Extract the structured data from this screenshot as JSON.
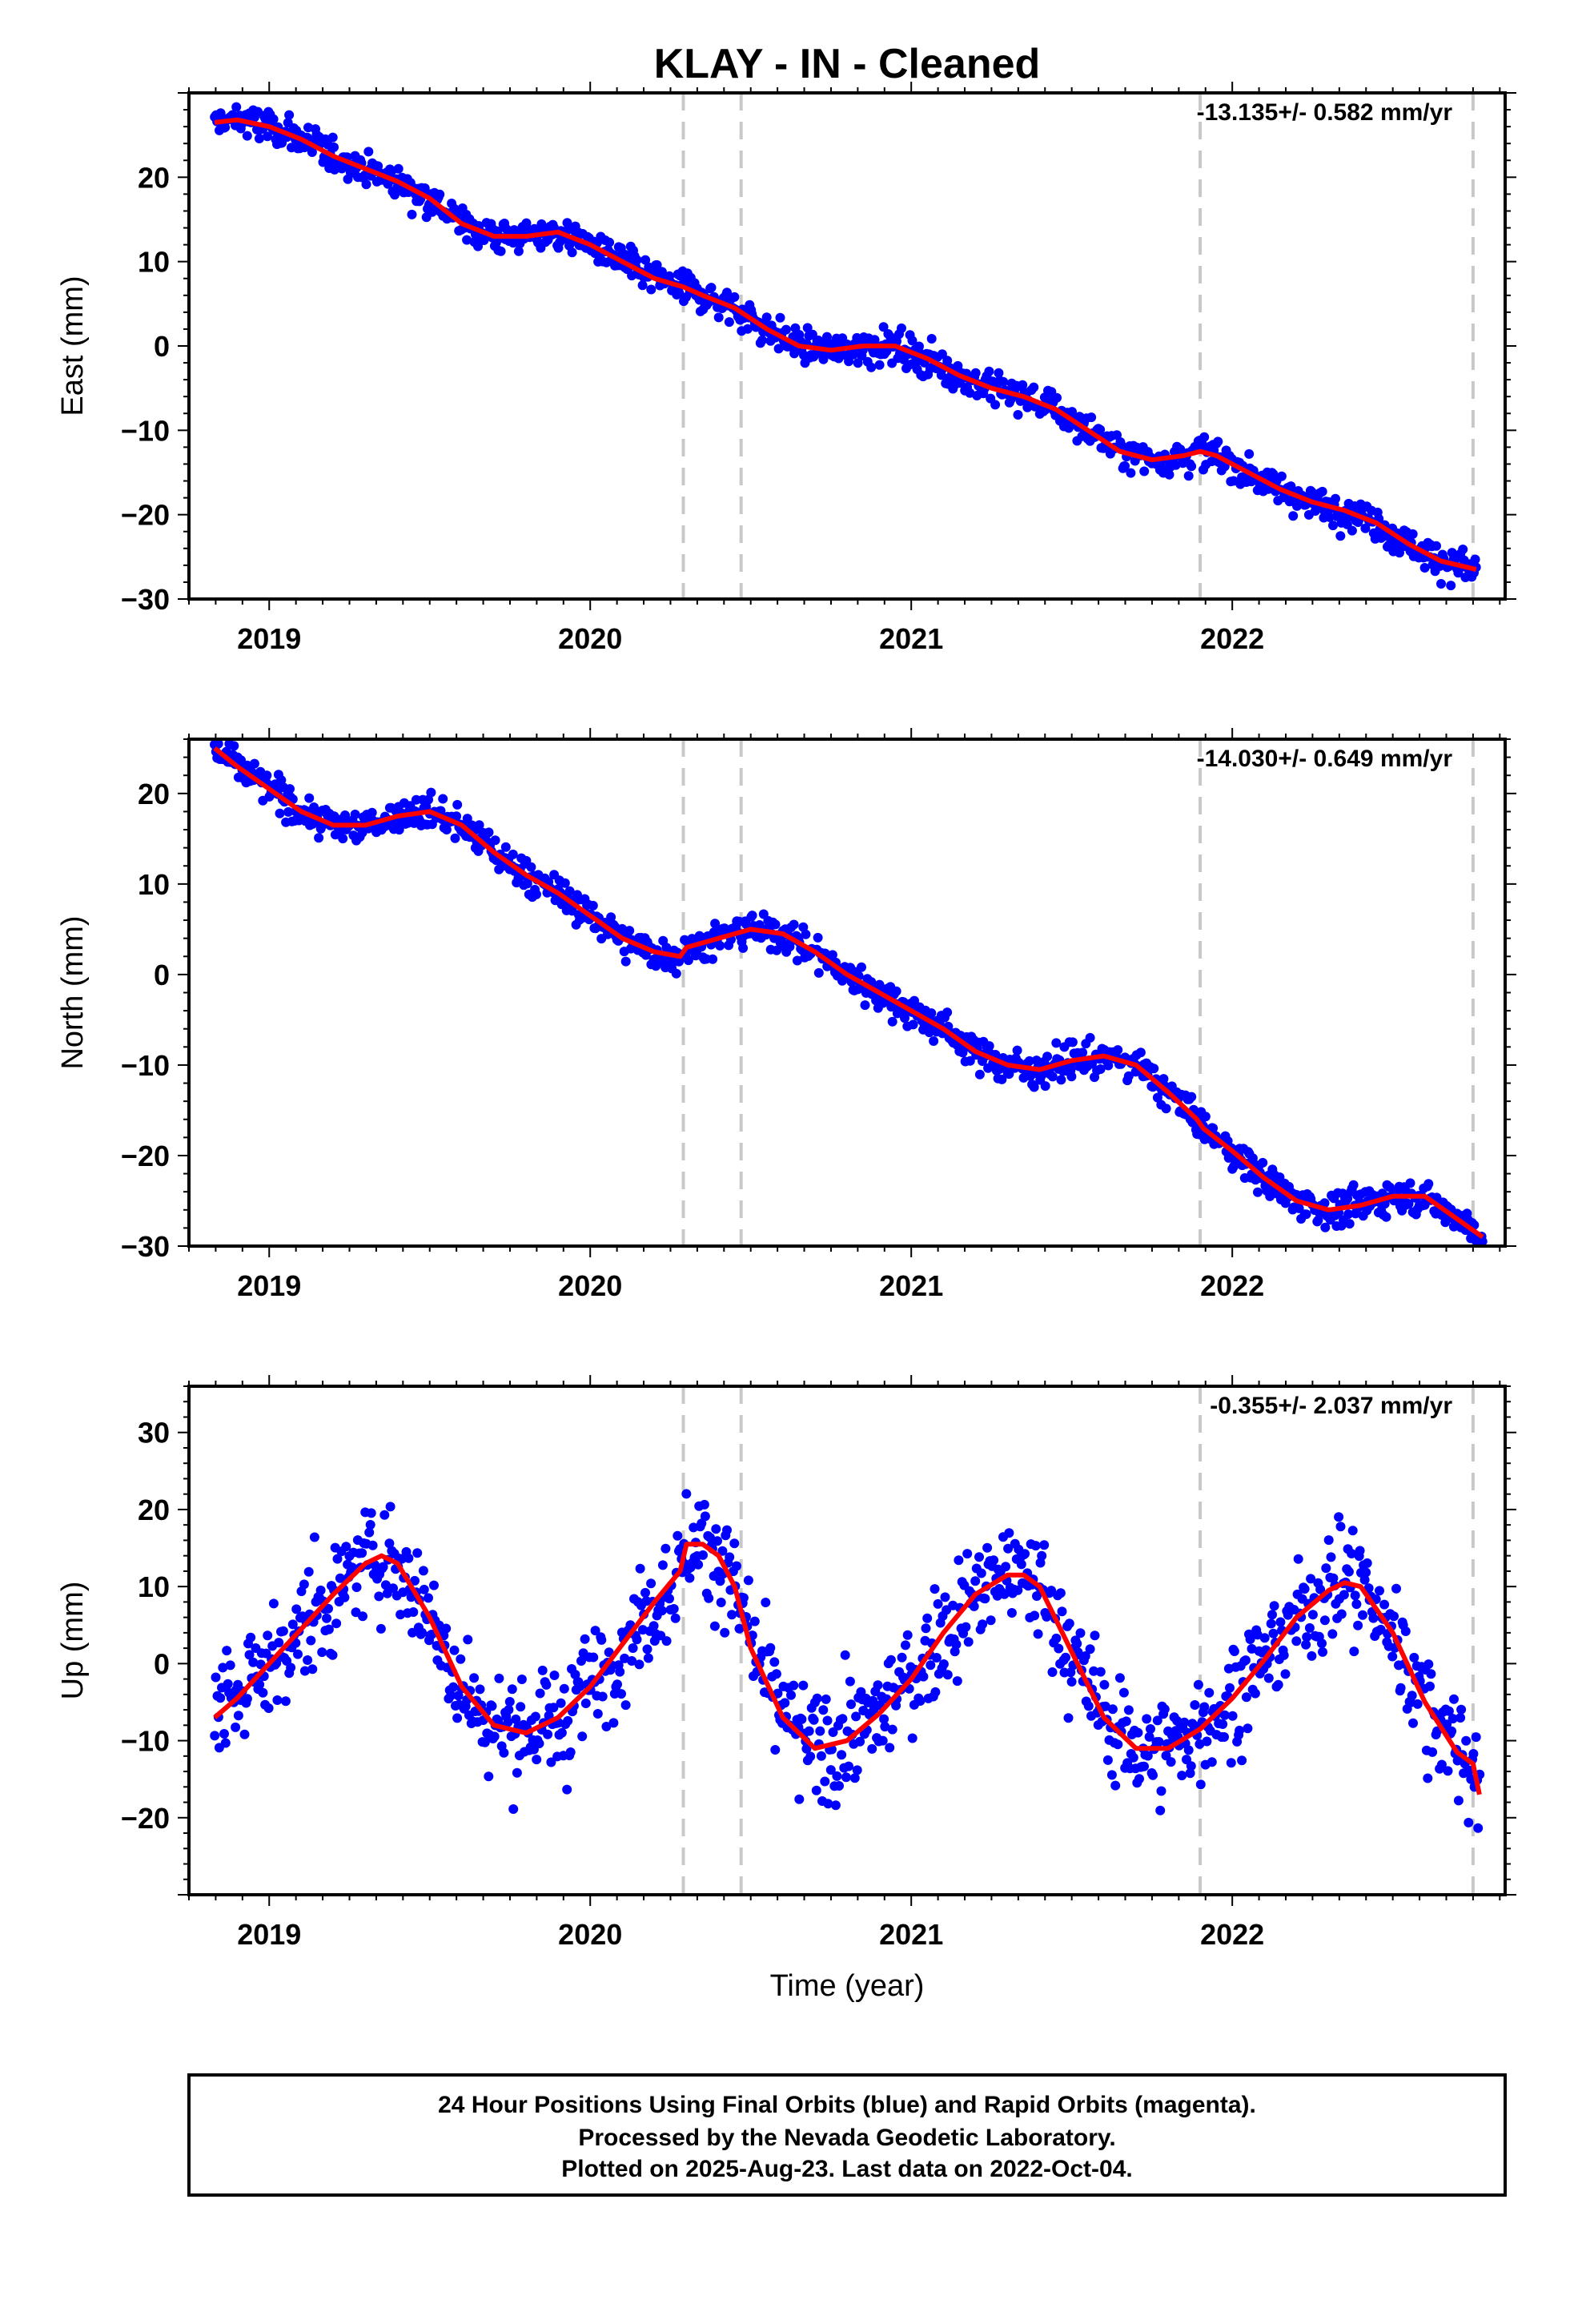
{
  "title": "KLAY  - IN - Cleaned",
  "xlabel": "Time (year)",
  "colors": {
    "points": "#0000ff",
    "model": "#ff0000",
    "breaks": "#c8c8c8",
    "axis": "#000000"
  },
  "chart_data": [
    {
      "type": "scatter",
      "ylabel": "East (mm)",
      "rate_text": "-13.135+/- 0.582 mm/yr",
      "xlim": [
        2018.75,
        2022.85
      ],
      "ylim": [
        -30,
        30
      ],
      "x_ticks": [
        2019,
        2020,
        2021,
        2022
      ],
      "y_ticks": [
        -30,
        -20,
        -10,
        0,
        10,
        20
      ],
      "breaks": [
        2020.29,
        2020.47,
        2021.9,
        2022.75
      ],
      "grid": false,
      "series": [
        {
          "values_x": [
            2018.83,
            2018.9,
            2019.0,
            2019.1,
            2019.2,
            2019.3,
            2019.4,
            2019.5,
            2019.6,
            2019.7,
            2019.8,
            2019.9,
            2020.0,
            2020.1,
            2020.2,
            2020.29,
            2020.35,
            2020.45,
            2020.55,
            2020.65,
            2020.75,
            2020.85,
            2020.95,
            2021.05,
            2021.15,
            2021.25,
            2021.35,
            2021.45,
            2021.55,
            2021.65,
            2021.75,
            2021.85,
            2021.9,
            2021.95,
            2022.05,
            2022.15,
            2022.25,
            2022.35,
            2022.45,
            2022.55,
            2022.65,
            2022.76
          ],
          "values_y": [
            26.5,
            26.8,
            26.0,
            24.5,
            22.5,
            21.0,
            19.5,
            17.5,
            14.5,
            13.0,
            13.0,
            13.5,
            12.0,
            10.0,
            8.0,
            7.0,
            6.0,
            4.5,
            2.0,
            0.0,
            -0.5,
            0.0,
            0.0,
            -1.5,
            -3.5,
            -5.0,
            -6.0,
            -7.5,
            -10.0,
            -12.5,
            -13.5,
            -13.0,
            -12.5,
            -13.0,
            -15.0,
            -17.0,
            -18.5,
            -19.5,
            -21.0,
            -23.5,
            -25.5,
            -26.5
          ]
        }
      ]
    },
    {
      "type": "scatter",
      "ylabel": "North (mm)",
      "rate_text": "-14.030+/- 0.649 mm/yr",
      "xlim": [
        2018.75,
        2022.85
      ],
      "ylim": [
        -30,
        26
      ],
      "x_ticks": [
        2019,
        2020,
        2021,
        2022
      ],
      "y_ticks": [
        -30,
        -20,
        -10,
        0,
        10,
        20
      ],
      "breaks": [
        2020.29,
        2020.47,
        2021.9,
        2022.75
      ],
      "grid": false,
      "series": [
        {
          "values_x": [
            2018.83,
            2018.9,
            2019.0,
            2019.1,
            2019.2,
            2019.3,
            2019.4,
            2019.5,
            2019.6,
            2019.7,
            2019.8,
            2019.9,
            2020.0,
            2020.1,
            2020.2,
            2020.28,
            2020.3,
            2020.4,
            2020.5,
            2020.6,
            2020.7,
            2020.8,
            2020.9,
            2021.0,
            2021.1,
            2021.2,
            2021.3,
            2021.4,
            2021.5,
            2021.6,
            2021.7,
            2021.8,
            2021.89,
            2021.91,
            2022.0,
            2022.1,
            2022.2,
            2022.3,
            2022.4,
            2022.5,
            2022.6,
            2022.7,
            2022.78
          ],
          "values_y": [
            25.0,
            23.0,
            20.5,
            18.0,
            16.5,
            16.5,
            17.5,
            18.0,
            16.5,
            13.5,
            11.0,
            9.0,
            6.5,
            4.0,
            2.5,
            2.0,
            3.0,
            4.0,
            5.0,
            4.5,
            2.5,
            0.0,
            -2.0,
            -4.0,
            -6.0,
            -8.5,
            -10.0,
            -10.5,
            -9.5,
            -9.0,
            -10.0,
            -13.0,
            -16.0,
            -17.0,
            -19.5,
            -22.5,
            -25.0,
            -26.0,
            -25.5,
            -24.5,
            -24.5,
            -27.0,
            -29.0
          ]
        }
      ]
    },
    {
      "type": "scatter",
      "ylabel": "Up (mm)",
      "rate_text": "-0.355+/- 2.037 mm/yr",
      "xlim": [
        2018.75,
        2022.85
      ],
      "ylim": [
        -30,
        36
      ],
      "x_ticks": [
        2019,
        2020,
        2021,
        2022
      ],
      "y_ticks": [
        -20,
        -10,
        0,
        10,
        20,
        30
      ],
      "breaks": [
        2020.29,
        2020.47,
        2021.9,
        2022.75
      ],
      "grid": false,
      "series": [
        {
          "values_x": [
            2018.83,
            2018.9,
            2019.0,
            2019.1,
            2019.2,
            2019.3,
            2019.35,
            2019.4,
            2019.5,
            2019.6,
            2019.7,
            2019.8,
            2019.9,
            2020.0,
            2020.1,
            2020.2,
            2020.28,
            2020.3,
            2020.35,
            2020.4,
            2020.45,
            2020.5,
            2020.6,
            2020.7,
            2020.8,
            2020.9,
            2021.0,
            2021.1,
            2021.2,
            2021.3,
            2021.35,
            2021.4,
            2021.5,
            2021.6,
            2021.7,
            2021.8,
            2021.9,
            2022.0,
            2022.1,
            2022.2,
            2022.3,
            2022.35,
            2022.4,
            2022.5,
            2022.6,
            2022.7,
            2022.75,
            2022.77
          ],
          "values_y": [
            -7.0,
            -4.5,
            0.0,
            4.5,
            9.0,
            13.0,
            14.0,
            13.0,
            6.0,
            -3.0,
            -8.0,
            -9.0,
            -7.0,
            -3.0,
            2.5,
            8.0,
            12.0,
            15.5,
            15.5,
            14.0,
            10.0,
            2.0,
            -7.0,
            -11.0,
            -10.0,
            -6.5,
            -2.0,
            4.0,
            9.0,
            11.5,
            11.5,
            10.0,
            1.5,
            -7.0,
            -11.0,
            -11.0,
            -8.5,
            -4.5,
            0.5,
            6.0,
            9.5,
            10.5,
            10.0,
            4.0,
            -5.0,
            -11.5,
            -13.0,
            -17.0
          ]
        }
      ]
    }
  ],
  "footer": {
    "line1": "24 Hour Positions Using Final Orbits (blue) and Rapid Orbits (magenta).",
    "line2": "Processed by the Nevada Geodetic Laboratory.",
    "line3": "Plotted on 2025-Aug-23. Last data on 2022-Oct-04."
  }
}
